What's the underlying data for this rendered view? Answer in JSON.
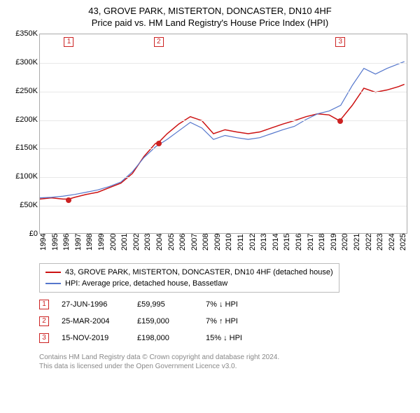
{
  "title_line1": "43, GROVE PARK, MISTERTON, DONCASTER, DN10 4HF",
  "title_line2": "Price paid vs. HM Land Registry's House Price Index (HPI)",
  "chart": {
    "type": "line",
    "background_color": "#ffffff",
    "grid_color": "#e8e8e8",
    "axis_color": "#aaaaaa",
    "xlim": [
      1994,
      2025.7
    ],
    "ylim": [
      0,
      350000
    ],
    "ytick_step": 50000,
    "ytick_labels": [
      "£0",
      "£50K",
      "£100K",
      "£150K",
      "£200K",
      "£250K",
      "£300K",
      "£350K"
    ],
    "xtick_step": 1,
    "xtick_labels": [
      "1994",
      "1995",
      "1996",
      "1997",
      "1998",
      "1999",
      "2000",
      "2001",
      "2002",
      "2003",
      "2004",
      "2005",
      "2006",
      "2007",
      "2008",
      "2009",
      "2010",
      "2011",
      "2012",
      "2013",
      "2014",
      "2015",
      "2016",
      "2017",
      "2018",
      "2019",
      "2020",
      "2021",
      "2022",
      "2023",
      "2024",
      "2025"
    ],
    "series": [
      {
        "name": "price_paid",
        "label": "43, GROVE PARK, MISTERTON, DONCASTER, DN10 4HF (detached house)",
        "color": "#cc1111",
        "line_width": 1.5,
        "x": [
          1994.0,
          1995.0,
          1996.0,
          1996.5,
          1997.0,
          1998.0,
          1999.0,
          2000.0,
          2001.0,
          2002.0,
          2003.0,
          2004.0,
          2004.23,
          2005.0,
          2006.0,
          2007.0,
          2008.0,
          2009.0,
          2010.0,
          2011.0,
          2012.0,
          2013.0,
          2014.0,
          2015.0,
          2016.0,
          2017.0,
          2018.0,
          2019.0,
          2019.87,
          2020.0,
          2021.0,
          2022.0,
          2023.0,
          2024.0,
          2025.0,
          2025.5
        ],
        "y": [
          60000,
          62000,
          60000,
          59995,
          63000,
          68000,
          72000,
          80000,
          88000,
          105000,
          135000,
          158000,
          159000,
          175000,
          192000,
          205000,
          198000,
          175000,
          182000,
          178000,
          175000,
          178000,
          185000,
          192000,
          198000,
          205000,
          210000,
          208000,
          198000,
          200000,
          225000,
          255000,
          248000,
          252000,
          258000,
          262000
        ]
      },
      {
        "name": "hpi",
        "label": "HPI: Average price, detached house, Bassetlaw",
        "color": "#5577cc",
        "line_width": 1.2,
        "x": [
          1994.0,
          1995.0,
          1996.0,
          1997.0,
          1998.0,
          1999.0,
          2000.0,
          2001.0,
          2002.0,
          2003.0,
          2004.0,
          2005.0,
          2006.0,
          2007.0,
          2008.0,
          2009.0,
          2010.0,
          2011.0,
          2012.0,
          2013.0,
          2014.0,
          2015.0,
          2016.0,
          2017.0,
          2018.0,
          2019.0,
          2020.0,
          2021.0,
          2022.0,
          2023.0,
          2024.0,
          2025.0,
          2025.5
        ],
        "y": [
          62000,
          63000,
          65000,
          68000,
          72000,
          76000,
          82000,
          90000,
          108000,
          133000,
          152000,
          165000,
          180000,
          195000,
          185000,
          165000,
          172000,
          168000,
          165000,
          168000,
          175000,
          182000,
          188000,
          200000,
          210000,
          215000,
          225000,
          260000,
          290000,
          280000,
          290000,
          298000,
          302000
        ]
      }
    ],
    "markers": [
      {
        "num": "1",
        "x": 1996.5,
        "y": 59995
      },
      {
        "num": "2",
        "x": 2004.23,
        "y": 159000
      },
      {
        "num": "3",
        "x": 2019.87,
        "y": 198000
      }
    ],
    "label_fontsize": 11
  },
  "legend": {
    "items": [
      {
        "label": "43, GROVE PARK, MISTERTON, DONCASTER, DN10 4HF (detached house)",
        "color": "#cc1111"
      },
      {
        "label": "HPI: Average price, detached house, Bassetlaw",
        "color": "#5577cc"
      }
    ]
  },
  "events": [
    {
      "num": "1",
      "date": "27-JUN-1996",
      "price": "£59,995",
      "hpi": "7% ↓ HPI"
    },
    {
      "num": "2",
      "date": "25-MAR-2004",
      "price": "£159,000",
      "hpi": "7% ↑ HPI"
    },
    {
      "num": "3",
      "date": "15-NOV-2019",
      "price": "£198,000",
      "hpi": "15% ↓ HPI"
    }
  ],
  "footer_line1": "Contains HM Land Registry data © Crown copyright and database right 2024.",
  "footer_line2": "This data is licensed under the Open Government Licence v3.0."
}
